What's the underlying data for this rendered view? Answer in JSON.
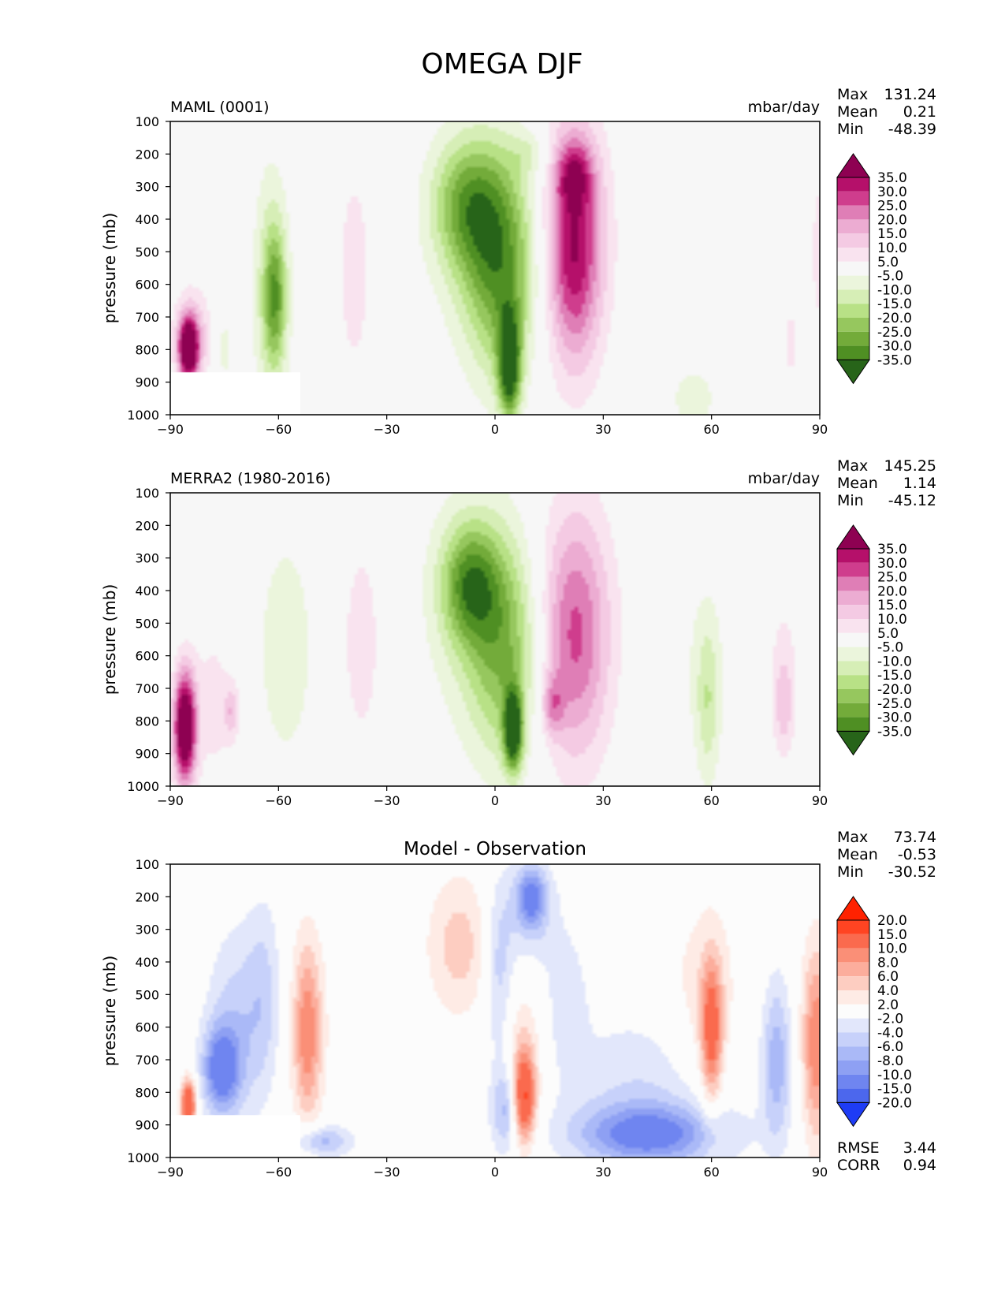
{
  "title": "OMEGA DJF",
  "chart_data": [
    {
      "type": "heatmap",
      "left_title": "MAML (0001)",
      "center_title": "",
      "units": "mbar/day",
      "ylabel": "pressure (mb)",
      "xlim": [
        -90,
        90
      ],
      "ylim": [
        1000,
        100
      ],
      "x_ticks": [
        "−90",
        "−60",
        "−30",
        "0",
        "30",
        "60",
        "90"
      ],
      "y_ticks": [
        "100",
        "200",
        "300",
        "400",
        "500",
        "600",
        "700",
        "800",
        "900",
        "1000"
      ],
      "stats": [
        [
          "Max",
          "131.24"
        ],
        [
          "Mean",
          "0.21"
        ],
        [
          "Min",
          "-48.39"
        ]
      ],
      "colorbar": {
        "labels": [
          "35.0",
          "30.0",
          "25.0",
          "20.0",
          "15.0",
          "10.0",
          "5.0",
          "-5.0",
          "-10.0",
          "-15.0",
          "-20.0",
          "-25.0",
          "-30.0",
          "-35.0"
        ],
        "colors": [
          "#8e0152",
          "#b5106a",
          "#cf3d8d",
          "#df7eb6",
          "#ecacd2",
          "#f4cae3",
          "#f9e3ef",
          "#f7f7f7",
          "#ebf5dc",
          "#d6eeb6",
          "#b8e186",
          "#96c75e",
          "#73ab3a",
          "#4f8f23",
          "#276419"
        ]
      },
      "features": [
        {
          "x": 4,
          "p": 850,
          "rx": 3,
          "rp": 160,
          "v": -38
        },
        {
          "x": 2,
          "p": 580,
          "rx": 10,
          "rp": 330,
          "v": -22
        },
        {
          "x": -2,
          "p": 450,
          "rx": 14,
          "rp": 320,
          "v": -12
        },
        {
          "x": -8,
          "p": 350,
          "rx": 10,
          "rp": 200,
          "v": -20
        },
        {
          "x": 10,
          "p": 200,
          "rx": 6,
          "rp": 70,
          "v": -8
        },
        {
          "x": 22,
          "p": 500,
          "rx": 7,
          "rp": 330,
          "v": 24
        },
        {
          "x": 21,
          "p": 450,
          "rx": 11,
          "rp": 400,
          "v": 13
        },
        {
          "x": 22,
          "p": 260,
          "rx": 5,
          "rp": 100,
          "v": 17
        },
        {
          "x": -39,
          "p": 560,
          "rx": 4,
          "rp": 280,
          "v": 10
        },
        {
          "x": -62,
          "p": 620,
          "rx": 5,
          "rp": 380,
          "v": -14
        },
        {
          "x": -61,
          "p": 640,
          "rx": 3,
          "rp": 200,
          "v": -19
        },
        {
          "x": -85,
          "p": 800,
          "rx": 2.5,
          "rp": 90,
          "v": 45
        },
        {
          "x": -84,
          "p": 760,
          "rx": 5,
          "rp": 140,
          "v": 16
        },
        {
          "x": -75,
          "p": 800,
          "rx": 2,
          "rp": 100,
          "v": -8
        },
        {
          "x": 82,
          "p": 780,
          "rx": 2,
          "rp": 140,
          "v": 7
        },
        {
          "x": 90,
          "p": 500,
          "rx": 3,
          "rp": 300,
          "v": 7
        },
        {
          "x": 55,
          "p": 950,
          "rx": 8,
          "rp": 120,
          "v": -7
        }
      ],
      "blanked": [
        -90,
        -54,
        870,
        1000
      ]
    },
    {
      "type": "heatmap",
      "left_title": "MERRA2 (1980-2016)",
      "center_title": "",
      "units": "mbar/day",
      "ylabel": "pressure (mb)",
      "xlim": [
        -90,
        90
      ],
      "ylim": [
        1000,
        100
      ],
      "x_ticks": [
        "−90",
        "−60",
        "−30",
        "0",
        "30",
        "60",
        "90"
      ],
      "y_ticks": [
        "100",
        "200",
        "300",
        "400",
        "500",
        "600",
        "700",
        "800",
        "900",
        "1000"
      ],
      "stats": [
        [
          "Max",
          "145.25"
        ],
        [
          "Mean",
          "1.14"
        ],
        [
          "Min",
          "-45.12"
        ]
      ],
      "colorbar": {
        "labels": [
          "35.0",
          "30.0",
          "25.0",
          "20.0",
          "15.0",
          "10.0",
          "5.0",
          "-5.0",
          "-10.0",
          "-15.0",
          "-20.0",
          "-25.0",
          "-30.0",
          "-35.0"
        ],
        "colors": [
          "#8e0152",
          "#b5106a",
          "#cf3d8d",
          "#df7eb6",
          "#ecacd2",
          "#f4cae3",
          "#f9e3ef",
          "#f7f7f7",
          "#ebf5dc",
          "#d6eeb6",
          "#b8e186",
          "#96c75e",
          "#73ab3a",
          "#4f8f23",
          "#276419"
        ]
      },
      "features": [
        {
          "x": 5,
          "p": 830,
          "rx": 2.5,
          "rp": 120,
          "v": -40
        },
        {
          "x": 3,
          "p": 600,
          "rx": 10,
          "rp": 330,
          "v": -20
        },
        {
          "x": -7,
          "p": 380,
          "rx": 8,
          "rp": 180,
          "v": -24
        },
        {
          "x": -5,
          "p": 450,
          "rx": 14,
          "rp": 380,
          "v": -10
        },
        {
          "x": 22,
          "p": 550,
          "rx": 9,
          "rp": 360,
          "v": 18
        },
        {
          "x": 22,
          "p": 500,
          "rx": 12,
          "rp": 420,
          "v": 9
        },
        {
          "x": 16,
          "p": 750,
          "rx": 3,
          "rp": 90,
          "v": 15
        },
        {
          "x": -37,
          "p": 560,
          "rx": 5,
          "rp": 300,
          "v": 9
        },
        {
          "x": -58,
          "p": 580,
          "rx": 8,
          "rp": 360,
          "v": -9
        },
        {
          "x": -86,
          "p": 820,
          "rx": 3,
          "rp": 170,
          "v": 50
        },
        {
          "x": -78,
          "p": 750,
          "rx": 6,
          "rp": 260,
          "v": 7
        },
        {
          "x": -73,
          "p": 770,
          "rx": 2,
          "rp": 80,
          "v": 12
        },
        {
          "x": 59,
          "p": 750,
          "rx": 3,
          "rp": 240,
          "v": -10
        },
        {
          "x": 58,
          "p": 650,
          "rx": 7,
          "rp": 320,
          "v": -6
        },
        {
          "x": 80,
          "p": 750,
          "rx": 2.5,
          "rp": 140,
          "v": 9
        },
        {
          "x": 80,
          "p": 650,
          "rx": 5,
          "rp": 300,
          "v": 6
        }
      ],
      "blanked": null
    },
    {
      "type": "heatmap",
      "left_title": "",
      "center_title": "Model - Observation",
      "units": "",
      "ylabel": "pressure (mb)",
      "xlim": [
        -90,
        90
      ],
      "ylim": [
        1000,
        100
      ],
      "x_ticks": [
        "−90",
        "−60",
        "−30",
        "0",
        "30",
        "60",
        "90"
      ],
      "y_ticks": [
        "100",
        "200",
        "300",
        "400",
        "500",
        "600",
        "700",
        "800",
        "900",
        "1000"
      ],
      "stats": [
        [
          "Max",
          "73.74"
        ],
        [
          "Mean",
          "-0.53"
        ],
        [
          "Min",
          "-30.52"
        ]
      ],
      "colorbar": {
        "labels": [
          "20.0",
          "15.0",
          "10.0",
          "8.0",
          "6.0",
          "4.0",
          "2.0",
          "-2.0",
          "-4.0",
          "-6.0",
          "-8.0",
          "-10.0",
          "-15.0",
          "-20.0"
        ],
        "colors": [
          "#ff2200",
          "#ff4422",
          "#fa6a4e",
          "#fa8f77",
          "#fcad9c",
          "#fdcdc1",
          "#feebe5",
          "#fcfcfc",
          "#e2e7fb",
          "#c7d1fa",
          "#aab9f7",
          "#8ea0f3",
          "#6f85f0",
          "#4c67ed",
          "#1e3cf5"
        ]
      },
      "features": [
        {
          "x": -52,
          "p": 620,
          "rx": 3.5,
          "rp": 250,
          "v": 6.5
        },
        {
          "x": -52,
          "p": 600,
          "rx": 6,
          "rp": 330,
          "v": 3.5
        },
        {
          "x": -76,
          "p": 730,
          "rx": 5,
          "rp": 130,
          "v": -11
        },
        {
          "x": -72,
          "p": 600,
          "rx": 8,
          "rp": 300,
          "v": -5
        },
        {
          "x": -64,
          "p": 500,
          "rx": 5,
          "rp": 300,
          "v": -4
        },
        {
          "x": -85,
          "p": 840,
          "rx": 2,
          "rp": 80,
          "v": 16
        },
        {
          "x": 10,
          "p": 200,
          "rx": 4,
          "rp": 90,
          "v": -9
        },
        {
          "x": 10,
          "p": 250,
          "rx": 8,
          "rp": 170,
          "v": -4
        },
        {
          "x": 8,
          "p": 820,
          "rx": 3,
          "rp": 130,
          "v": 13
        },
        {
          "x": 8,
          "p": 720,
          "rx": 5,
          "rp": 230,
          "v": 5
        },
        {
          "x": -10,
          "p": 350,
          "rx": 9,
          "rp": 220,
          "v": 5
        },
        {
          "x": 1,
          "p": 420,
          "rx": 4,
          "rp": 260,
          "v": -5
        },
        {
          "x": 3,
          "p": 850,
          "rx": 4,
          "rp": 130,
          "v": -7
        },
        {
          "x": 43,
          "p": 930,
          "rx": 20,
          "rp": 90,
          "v": -10
        },
        {
          "x": 43,
          "p": 800,
          "rx": 26,
          "rp": 240,
          "v": -4
        },
        {
          "x": 60,
          "p": 620,
          "rx": 3,
          "rp": 220,
          "v": 11
        },
        {
          "x": 58,
          "p": 550,
          "rx": 11,
          "rp": 350,
          "v": 3.5
        },
        {
          "x": 78,
          "p": 700,
          "rx": 4,
          "rp": 250,
          "v": -7
        },
        {
          "x": 89,
          "p": 650,
          "rx": 4,
          "rp": 300,
          "v": 10
        },
        {
          "x": -48,
          "p": 950,
          "rx": 8,
          "rp": 50,
          "v": -7
        },
        {
          "x": 20,
          "p": 500,
          "rx": 6,
          "rp": 200,
          "v": -3
        }
      ],
      "blanked": [
        -90,
        -54,
        870,
        1000
      ],
      "extra_stats": [
        [
          "RMSE",
          "3.44"
        ],
        [
          "CORR",
          "0.94"
        ]
      ]
    }
  ]
}
